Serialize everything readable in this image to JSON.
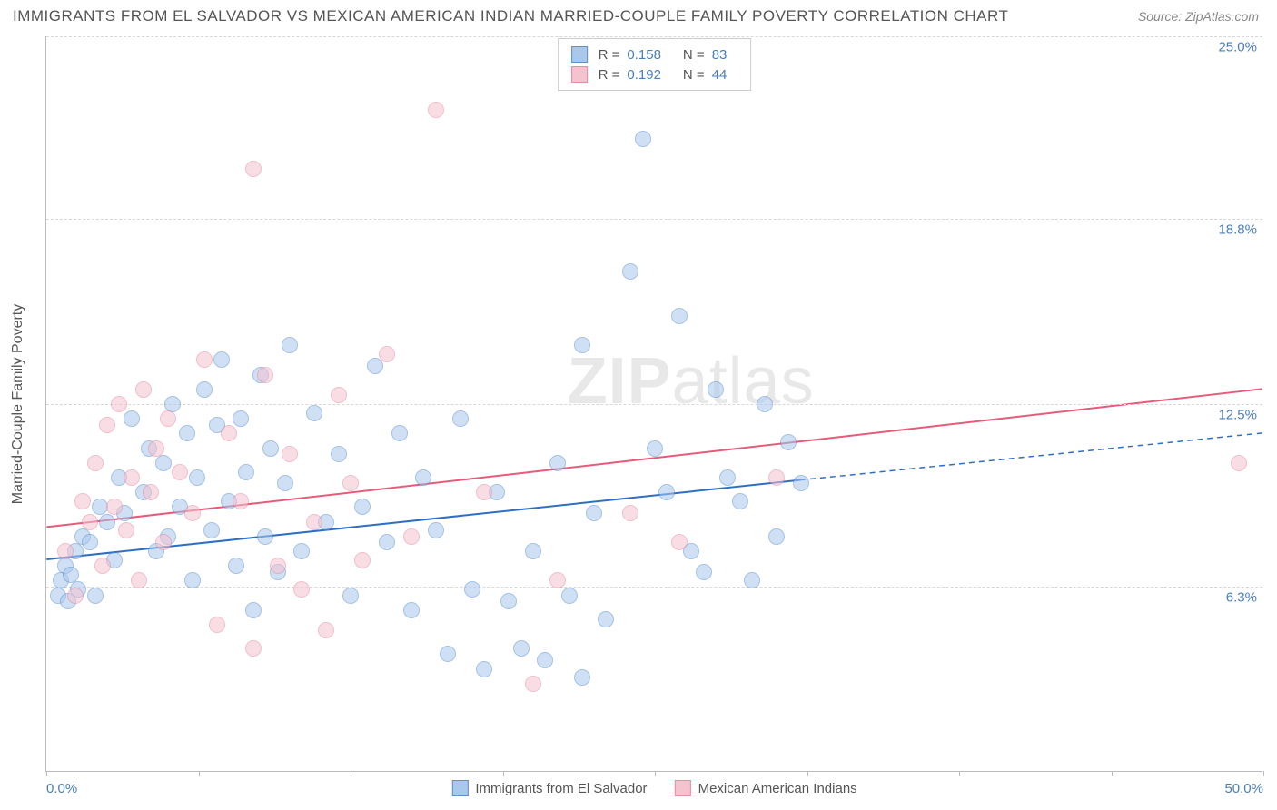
{
  "header": {
    "title": "IMMIGRANTS FROM EL SALVADOR VS MEXICAN AMERICAN INDIAN MARRIED-COUPLE FAMILY POVERTY CORRELATION CHART",
    "source_label": "Source:",
    "source_value": "ZipAtlas.com"
  },
  "chart": {
    "type": "scatter",
    "watermark": "ZIPatlas",
    "ylabel": "Married-Couple Family Poverty",
    "xlim": [
      0,
      50
    ],
    "ylim": [
      0,
      25
    ],
    "xtick_positions": [
      0,
      6.25,
      12.5,
      18.75,
      25,
      31.25,
      37.5,
      43.75,
      50
    ],
    "xtick_labels": {
      "0": "0.0%",
      "50": "50.0%"
    },
    "ytick_positions": [
      6.3,
      12.5,
      18.8,
      25.0
    ],
    "ytick_labels": [
      "6.3%",
      "12.5%",
      "18.8%",
      "25.0%"
    ],
    "grid_color": "#d8d8d8",
    "axis_color": "#bbbbbb",
    "background_color": "#ffffff",
    "point_radius": 9,
    "point_opacity": 0.55,
    "series": [
      {
        "name": "Immigrants from El Salvador",
        "fill_color": "#a8c8ec",
        "stroke_color": "#5b8fd0",
        "line_color": "#2e6fc6",
        "R": "0.158",
        "N": "83",
        "trend": {
          "x1": 0,
          "y1": 7.2,
          "x2": 31,
          "y2": 9.9,
          "x2_dash": 50,
          "y2_dash": 11.5
        },
        "points": [
          [
            0.5,
            6.0
          ],
          [
            0.6,
            6.5
          ],
          [
            0.8,
            7.0
          ],
          [
            0.9,
            5.8
          ],
          [
            1.0,
            6.7
          ],
          [
            1.2,
            7.5
          ],
          [
            1.3,
            6.2
          ],
          [
            1.5,
            8.0
          ],
          [
            1.8,
            7.8
          ],
          [
            2.0,
            6.0
          ],
          [
            2.2,
            9.0
          ],
          [
            2.5,
            8.5
          ],
          [
            2.8,
            7.2
          ],
          [
            3.0,
            10.0
          ],
          [
            3.2,
            8.8
          ],
          [
            3.5,
            12.0
          ],
          [
            4.0,
            9.5
          ],
          [
            4.2,
            11.0
          ],
          [
            4.5,
            7.5
          ],
          [
            4.8,
            10.5
          ],
          [
            5.0,
            8.0
          ],
          [
            5.2,
            12.5
          ],
          [
            5.5,
            9.0
          ],
          [
            5.8,
            11.5
          ],
          [
            6.0,
            6.5
          ],
          [
            6.2,
            10.0
          ],
          [
            6.5,
            13.0
          ],
          [
            6.8,
            8.2
          ],
          [
            7.0,
            11.8
          ],
          [
            7.2,
            14.0
          ],
          [
            7.5,
            9.2
          ],
          [
            7.8,
            7.0
          ],
          [
            8.0,
            12.0
          ],
          [
            8.2,
            10.2
          ],
          [
            8.5,
            5.5
          ],
          [
            8.8,
            13.5
          ],
          [
            9.0,
            8.0
          ],
          [
            9.2,
            11.0
          ],
          [
            9.5,
            6.8
          ],
          [
            9.8,
            9.8
          ],
          [
            10.0,
            14.5
          ],
          [
            10.5,
            7.5
          ],
          [
            11.0,
            12.2
          ],
          [
            11.5,
            8.5
          ],
          [
            12.0,
            10.8
          ],
          [
            12.5,
            6.0
          ],
          [
            13.0,
            9.0
          ],
          [
            13.5,
            13.8
          ],
          [
            14.0,
            7.8
          ],
          [
            14.5,
            11.5
          ],
          [
            15.0,
            5.5
          ],
          [
            15.5,
            10.0
          ],
          [
            16.0,
            8.2
          ],
          [
            16.5,
            4.0
          ],
          [
            17.0,
            12.0
          ],
          [
            17.5,
            6.2
          ],
          [
            18.0,
            3.5
          ],
          [
            18.5,
            9.5
          ],
          [
            19.0,
            5.8
          ],
          [
            19.5,
            4.2
          ],
          [
            20.0,
            7.5
          ],
          [
            20.5,
            3.8
          ],
          [
            21.0,
            10.5
          ],
          [
            21.5,
            6.0
          ],
          [
            22.0,
            14.5
          ],
          [
            22.5,
            8.8
          ],
          [
            23.0,
            5.2
          ],
          [
            24.0,
            17.0
          ],
          [
            24.5,
            21.5
          ],
          [
            25.0,
            11.0
          ],
          [
            25.5,
            9.5
          ],
          [
            26.0,
            15.5
          ],
          [
            26.5,
            7.5
          ],
          [
            27.0,
            6.8
          ],
          [
            27.5,
            13.0
          ],
          [
            28.0,
            10.0
          ],
          [
            28.5,
            9.2
          ],
          [
            29.0,
            6.5
          ],
          [
            29.5,
            12.5
          ],
          [
            30.0,
            8.0
          ],
          [
            30.5,
            11.2
          ],
          [
            31.0,
            9.8
          ],
          [
            22.0,
            3.2
          ]
        ]
      },
      {
        "name": "Mexican American Indians",
        "fill_color": "#f5c2cf",
        "stroke_color": "#e58ba3",
        "line_color": "#e65a7a",
        "R": "0.192",
        "N": "44",
        "trend": {
          "x1": 0,
          "y1": 8.3,
          "x2": 50,
          "y2": 13.0
        },
        "points": [
          [
            0.8,
            7.5
          ],
          [
            1.2,
            6.0
          ],
          [
            1.5,
            9.2
          ],
          [
            1.8,
            8.5
          ],
          [
            2.0,
            10.5
          ],
          [
            2.3,
            7.0
          ],
          [
            2.5,
            11.8
          ],
          [
            2.8,
            9.0
          ],
          [
            3.0,
            12.5
          ],
          [
            3.3,
            8.2
          ],
          [
            3.5,
            10.0
          ],
          [
            3.8,
            6.5
          ],
          [
            4.0,
            13.0
          ],
          [
            4.3,
            9.5
          ],
          [
            4.5,
            11.0
          ],
          [
            4.8,
            7.8
          ],
          [
            5.0,
            12.0
          ],
          [
            5.5,
            10.2
          ],
          [
            6.0,
            8.8
          ],
          [
            6.5,
            14.0
          ],
          [
            7.0,
            5.0
          ],
          [
            7.5,
            11.5
          ],
          [
            8.0,
            9.2
          ],
          [
            8.5,
            4.2
          ],
          [
            9.0,
            13.5
          ],
          [
            9.5,
            7.0
          ],
          [
            10.0,
            10.8
          ],
          [
            10.5,
            6.2
          ],
          [
            11.0,
            8.5
          ],
          [
            11.5,
            4.8
          ],
          [
            12.0,
            12.8
          ],
          [
            12.5,
            9.8
          ],
          [
            13.0,
            7.2
          ],
          [
            14.0,
            14.2
          ],
          [
            15.0,
            8.0
          ],
          [
            16.0,
            22.5
          ],
          [
            8.5,
            20.5
          ],
          [
            18.0,
            9.5
          ],
          [
            20.0,
            3.0
          ],
          [
            21.0,
            6.5
          ],
          [
            24.0,
            8.8
          ],
          [
            26.0,
            7.8
          ],
          [
            30.0,
            10.0
          ],
          [
            49.0,
            10.5
          ]
        ]
      }
    ],
    "legend_top": {
      "r_label": "R =",
      "n_label": "N ="
    }
  }
}
